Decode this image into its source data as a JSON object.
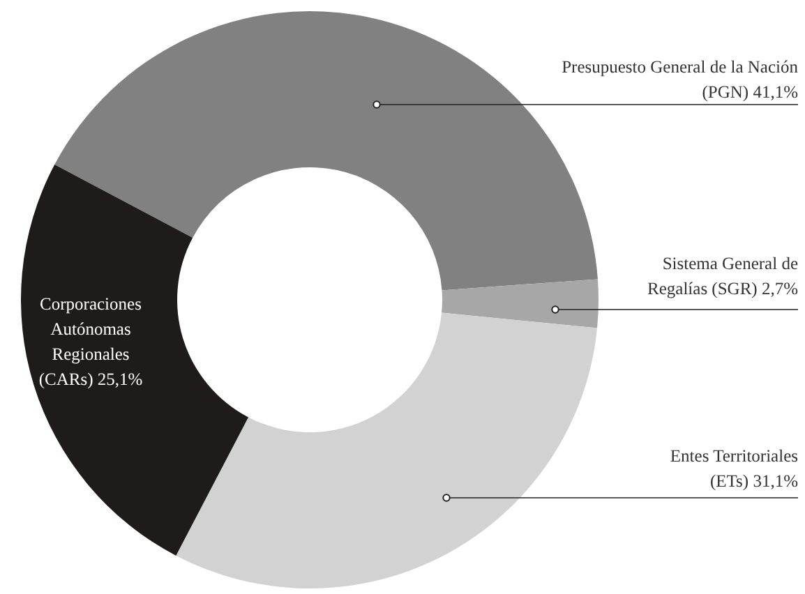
{
  "chart_data": {
    "type": "donut",
    "categories": [
      "Presupuesto General de la Nación (PGN)",
      "Sistema General de Regalías (SGR)",
      "Entes Territoriales (ETs)",
      "Corporaciones Autónomas Regionales (CARs)"
    ],
    "values": [
      41.1,
      2.7,
      31.1,
      25.1
    ],
    "value_labels": [
      "41,1%",
      "2,7%",
      "31,1%",
      "25,1%"
    ],
    "colors": [
      "#818181",
      "#a7a7a7",
      "#d2d2d2",
      "#1f1b1b"
    ]
  }
}
